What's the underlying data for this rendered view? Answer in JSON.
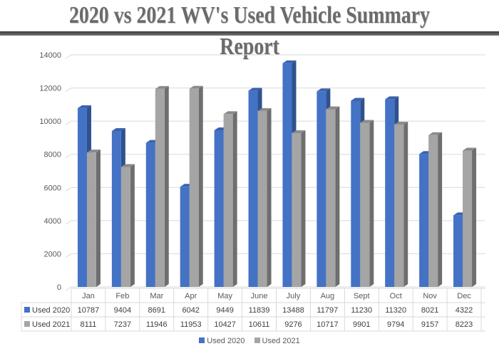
{
  "header": {
    "title": "2020 vs 2021 WV's Used Vehicle Summary Report"
  },
  "chart_data": {
    "type": "bar",
    "title": "2020 vs 2021 WV's Used Vehicle Summary Report",
    "xlabel": "",
    "ylabel": "",
    "ylim": [
      0,
      14000
    ],
    "yticks": [
      0,
      2000,
      4000,
      6000,
      8000,
      10000,
      12000,
      14000
    ],
    "grid": true,
    "legend_position": "bottom",
    "data_table": true,
    "categories": [
      "Jan",
      "Feb",
      "Mar",
      "Apr",
      "May",
      "June",
      "July",
      "Aug",
      "Sept",
      "Oct",
      "Nov",
      "Dec"
    ],
    "series": [
      {
        "name": "Used 2020",
        "color": "#4472C4",
        "values": [
          10787,
          9404,
          8691,
          6042,
          9449,
          11839,
          13488,
          11797,
          11230,
          11320,
          8021,
          4322
        ]
      },
      {
        "name": "Used 2021",
        "color": "#A5A5A5",
        "values": [
          8111,
          7237,
          11946,
          11953,
          10427,
          10611,
          9276,
          10717,
          9901,
          9794,
          9157,
          8223
        ]
      }
    ]
  }
}
